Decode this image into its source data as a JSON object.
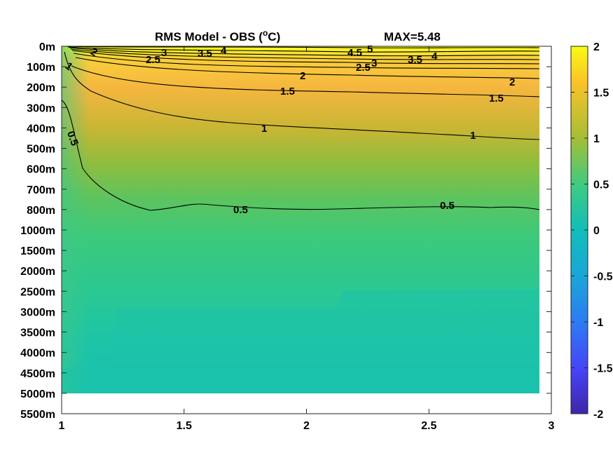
{
  "chart_data": {
    "type": "heatmap",
    "title_left": "RMS Model - OBS (",
    "title_unit_sup": "o",
    "title_unit_tail": "C)",
    "title_right": "MAX=5.48",
    "x_ticks": [
      "1",
      "1.5",
      "2",
      "2.5",
      "3"
    ],
    "x_tick_values": [
      1,
      1.5,
      2,
      2.5,
      3
    ],
    "xlim": [
      1,
      3
    ],
    "data_xlim": [
      1,
      2.95
    ],
    "y_ticks": [
      "0m",
      "100m",
      "200m",
      "300m",
      "400m",
      "500m",
      "600m",
      "700m",
      "800m",
      "1000m",
      "1500m",
      "2000m",
      "2500m",
      "3000m",
      "3500m",
      "4000m",
      "4500m",
      "5000m",
      "5500m"
    ],
    "y_direction": "reversed",
    "data_depth_limit": "5000m",
    "colorbar": {
      "ticks": [
        "2",
        "1.5",
        "1",
        "0.5",
        "0",
        "-0.5",
        "-1",
        "-1.5",
        "-2"
      ],
      "tick_values": [
        2,
        1.5,
        1,
        0.5,
        0,
        -0.5,
        -1,
        -1.5,
        -2
      ],
      "range": [
        -2,
        2
      ],
      "colormap": "parula",
      "colors": [
        "#3e26a8",
        "#4743f8",
        "#2c7cf3",
        "#1aa5d8",
        "#11beb9",
        "#3dcb82",
        "#a5be36",
        "#f4ba3d",
        "#f9fb15"
      ]
    },
    "contour_labels": [
      "5",
      "4.5",
      "4",
      "3.5",
      "3",
      "2.5",
      "2",
      "1.5",
      "1",
      "0.5"
    ],
    "contour_levels": [
      0.5,
      1,
      1.5,
      2,
      2.5,
      3,
      3.5,
      4,
      4.5,
      5
    ],
    "max_value": 5.48
  }
}
